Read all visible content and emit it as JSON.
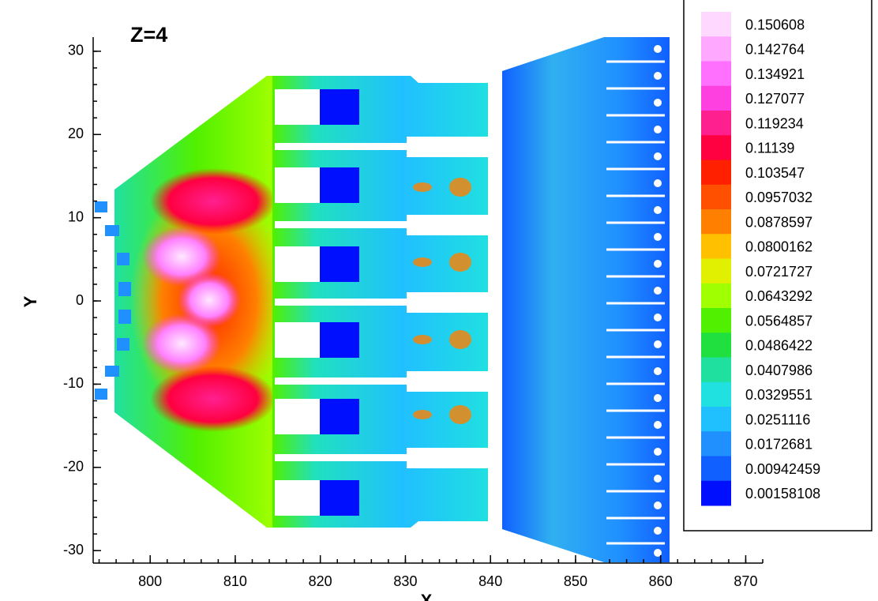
{
  "chart_data": {
    "type": "contour",
    "title": "Z=4",
    "x_label": "X",
    "y_label": "Y",
    "xlim": [
      793.3,
      872
    ],
    "ylim": [
      -31.5,
      31.7
    ],
    "xticks": [
      800,
      810,
      820,
      830,
      840,
      850,
      860,
      870
    ],
    "yticks": [
      -30,
      -20,
      -10,
      0,
      10,
      20,
      30
    ],
    "levels": [
      0.150608,
      0.142764,
      0.134921,
      0.127077,
      0.119234,
      0.11139,
      0.103547,
      0.0957032,
      0.0878597,
      0.0800162,
      0.0721727,
      0.0643292,
      0.0564857,
      0.0486422,
      0.0407986,
      0.0329551,
      0.0251116,
      0.0172681,
      0.00942459,
      0.00158108
    ],
    "level_colors": [
      "#ffd8ff",
      "#ffa8ff",
      "#ff70ff",
      "#ff40e0",
      "#ff2090",
      "#ff0040",
      "#ff2000",
      "#ff5000",
      "#ff8000",
      "#ffc000",
      "#e0f000",
      "#a0ff00",
      "#50f000",
      "#20e040",
      "#20e0a0",
      "#20e0e0",
      "#20c0ff",
      "#2090ff",
      "#1060ff",
      "#0010ff"
    ]
  }
}
